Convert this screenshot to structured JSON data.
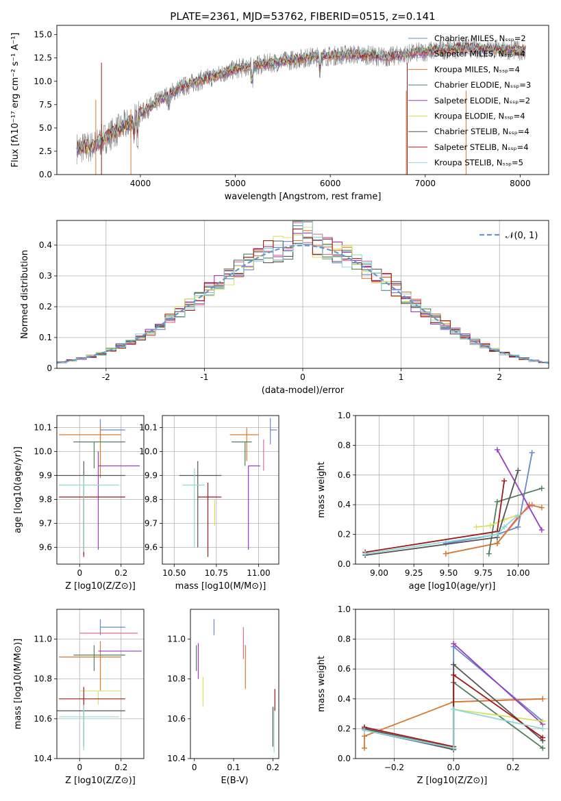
{
  "title": "PLATE=2361, MJD=53762, FIBERID=0515, z=0.141",
  "colors": {
    "CM": "#6688cc",
    "SM": "#e06a9a",
    "KM": "#d87a2e",
    "CE": "#4f7f5a",
    "SE": "#9a3bbd",
    "KE": "#d8e060",
    "CS": "#555555",
    "SS": "#a01818",
    "KS": "#8fd8d8",
    "grid": "#b0b0b0",
    "spectrum": "#808080",
    "normal": "#6495cd"
  },
  "chart_data": [
    {
      "id": "spectrum",
      "type": "line",
      "xlabel": "wavelength [Angstrom, rest frame]",
      "ylabel": "Flux [fλ10⁻¹⁷ erg cm⁻² s⁻¹ A⁻¹]",
      "xlim": [
        3120,
        8300
      ],
      "ylim": [
        0,
        16
      ],
      "xticks": [
        4000,
        5000,
        6000,
        7000,
        8000
      ],
      "yticks": [
        0.0,
        2.5,
        5.0,
        7.5,
        10.0,
        12.5,
        15.0
      ],
      "grid": false,
      "legend_position": "top-right",
      "continuum": {
        "wavelength": [
          3300,
          3500,
          3700,
          3900,
          4000,
          4200,
          4400,
          4600,
          4800,
          5000,
          5200,
          5400,
          5600,
          5800,
          6000,
          6200,
          6400,
          6600,
          6800,
          7000,
          7200,
          7400,
          7600,
          7800,
          8000,
          8060
        ],
        "flux": [
          2.8,
          3.0,
          4.4,
          5.6,
          6.5,
          8.0,
          9.2,
          10.0,
          10.6,
          11.3,
          11.7,
          12.0,
          12.3,
          12.6,
          12.7,
          12.9,
          12.8,
          12.6,
          12.9,
          13.2,
          13.4,
          13.6,
          13.5,
          13.4,
          13.3,
          13.2
        ]
      },
      "series": [
        {
          "name": "Chabrier MILES, N_SSP=2",
          "key": "CM"
        },
        {
          "name": "Salpeter MILES, N_SSP=4",
          "key": "SM"
        },
        {
          "name": "Kroupa MILES, N_SSP=4",
          "key": "KM"
        },
        {
          "name": "Chabrier ELODIE, N_SSP=3",
          "key": "CE"
        },
        {
          "name": "Salpeter ELODIE, N_SSP=2",
          "key": "SE"
        },
        {
          "name": "Kroupa ELODIE, N_SSP=4",
          "key": "KE"
        },
        {
          "name": "Chabrier STELIB, N_SSP=4",
          "key": "CS"
        },
        {
          "name": "Salpeter STELIB, N_SSP=4",
          "key": "SS"
        },
        {
          "name": "Kroupa STELIB, N_SSP=5",
          "key": "KS"
        }
      ]
    },
    {
      "id": "residuals",
      "type": "line",
      "xlabel": "(data-model)/error",
      "ylabel": "Normed distribution",
      "xlim": [
        -2.5,
        2.5
      ],
      "ylim": [
        0,
        0.48
      ],
      "xticks": [
        -2,
        -1,
        0,
        1,
        2
      ],
      "yticks": [
        0.0,
        0.1,
        0.2,
        0.3,
        0.4
      ],
      "grid": true,
      "legend_label": "𝒩(0, 1)",
      "legend_position": "top-right",
      "normal": {
        "mean": 0,
        "sigma": 1
      },
      "bin_width": 0.1
    },
    {
      "id": "age-vs-Z",
      "type": "scatter",
      "xlabel": "Z [log10(Z/Z⊙)]",
      "ylabel": "age  [log10(age/yr)]",
      "xlim": [
        -0.11,
        0.31
      ],
      "ylim": [
        9.53,
        10.15
      ],
      "xticks": [
        0.0,
        0.2
      ],
      "yticks": [
        9.6,
        9.7,
        9.8,
        9.9,
        10.0,
        10.1
      ],
      "grid": true,
      "points": [
        {
          "key": "CM",
          "x": 0.1,
          "xerr": [
            0.0,
            0.12
          ],
          "y": 10.09,
          "yerr": [
            0.04,
            0.045
          ]
        },
        {
          "key": "SM",
          "x": 0.1,
          "xerr": [
            0.0,
            0.0
          ],
          "y": 10.09,
          "yerr": [
            0.0,
            0.0
          ]
        },
        {
          "key": "KM",
          "x": 0.1,
          "xerr": [
            0.2,
            0.1
          ],
          "y": 10.07,
          "yerr": [
            0.18,
            0.04
          ]
        },
        {
          "key": "CE",
          "x": 0.07,
          "xerr": [
            0.1,
            0.15
          ],
          "y": 10.04,
          "yerr": [
            0.11,
            0.0
          ]
        },
        {
          "key": "SE",
          "x": 0.09,
          "xerr": [
            0.0,
            0.2
          ],
          "y": 9.94,
          "yerr": [
            0.35,
            0.06
          ]
        },
        {
          "key": "KE",
          "x": 0.09,
          "xerr": [
            0.0,
            0.0
          ],
          "y": 9.9,
          "yerr": [
            0.0,
            0.0
          ]
        },
        {
          "key": "CS",
          "x": 0.02,
          "xerr": [
            0.13,
            0.2
          ],
          "y": 9.9,
          "yerr": [
            0.33,
            0.06
          ]
        },
        {
          "key": "SS",
          "x": 0.02,
          "xerr": [
            0.12,
            0.2
          ],
          "y": 9.81,
          "yerr": [
            0.25,
            0.03
          ]
        },
        {
          "key": "KS",
          "x": 0.02,
          "xerr": [
            0.12,
            0.17
          ],
          "y": 9.86,
          "yerr": [
            0.28,
            0.04
          ]
        }
      ]
    },
    {
      "id": "age-vs-mass",
      "type": "scatter",
      "xlabel": "mass [log10(M/M⊙)]",
      "xlim": [
        10.43,
        11.12
      ],
      "ylim": [
        9.53,
        10.15
      ],
      "xticks": [
        10.5,
        10.75,
        11.0
      ],
      "xticklabels": [
        "10.50",
        "10.75",
        "11.00"
      ],
      "yticks": [
        9.6,
        9.7,
        9.8,
        9.9,
        10.0,
        10.1
      ],
      "grid": true,
      "points": [
        {
          "key": "CM",
          "x": 11.07,
          "xerr": [
            0.0,
            0.04
          ],
          "y": 10.09,
          "yerr": [
            0.06,
            0.05
          ]
        },
        {
          "key": "SM",
          "x": 11.03,
          "xerr": [
            0.0,
            0.0
          ],
          "y": 10.05,
          "yerr": [
            0.13,
            0.0
          ]
        },
        {
          "key": "KM",
          "x": 10.93,
          "xerr": [
            0.1,
            0.07
          ],
          "y": 10.07,
          "yerr": [
            0.11,
            0.03
          ]
        },
        {
          "key": "CE",
          "x": 10.92,
          "xerr": [
            0.08,
            0.04
          ],
          "y": 10.04,
          "yerr": [
            0.1,
            0.0
          ]
        },
        {
          "key": "SE",
          "x": 10.94,
          "xerr": [
            0.0,
            0.07
          ],
          "y": 9.94,
          "yerr": [
            0.35,
            0.0
          ]
        },
        {
          "key": "KE",
          "x": 10.74,
          "xerr": [
            0.0,
            0.0
          ],
          "y": 9.8,
          "yerr": [
            0.11,
            0.0
          ]
        },
        {
          "key": "CS",
          "x": 10.64,
          "xerr": [
            0.11,
            0.14
          ],
          "y": 9.9,
          "yerr": [
            0.3,
            0.06
          ]
        },
        {
          "key": "SS",
          "x": 10.7,
          "xerr": [
            0.06,
            0.08
          ],
          "y": 9.81,
          "yerr": [
            0.25,
            0.06
          ]
        },
        {
          "key": "KS",
          "x": 10.62,
          "xerr": [
            0.07,
            0.06
          ],
          "y": 9.86,
          "yerr": [
            0.26,
            0.07
          ]
        }
      ]
    },
    {
      "id": "massweight-vs-age",
      "type": "line",
      "xlabel": "age  [log10(age/yr)]",
      "ylabel": "mass weight",
      "xlim": [
        8.83,
        10.22
      ],
      "ylim": [
        0,
        1
      ],
      "xticks": [
        9.0,
        9.25,
        9.5,
        9.75,
        10.0
      ],
      "xticklabels": [
        "9.00",
        "9.25",
        "9.50",
        "9.75",
        "10.00"
      ],
      "yticks": [
        0.0,
        0.2,
        0.4,
        0.6,
        0.8,
        1.0
      ],
      "grid": true,
      "series": [
        {
          "key": "CM",
          "x": [
            9.48,
            9.85,
            10.0,
            10.1
          ],
          "y": [
            0.14,
            0.2,
            0.25,
            0.75
          ]
        },
        {
          "key": "SM",
          "x": [
            9.48,
            9.85,
            10.0,
            10.1
          ],
          "y": [
            0.07,
            0.14,
            0.32,
            0.4
          ]
        },
        {
          "key": "KM",
          "x": [
            9.48,
            9.85,
            10.08,
            10.17
          ],
          "y": [
            0.07,
            0.14,
            0.4,
            0.38
          ]
        },
        {
          "key": "CE",
          "x": [
            9.79,
            9.85,
            10.17
          ],
          "y": [
            0.07,
            0.42,
            0.51
          ]
        },
        {
          "key": "SE",
          "x": [
            9.85,
            10.17
          ],
          "y": [
            0.77,
            0.23
          ]
        },
        {
          "key": "KE",
          "x": [
            9.7,
            9.8,
            9.9,
            10.0
          ],
          "y": [
            0.25,
            0.26,
            0.3,
            0.33
          ]
        },
        {
          "key": "CS",
          "x": [
            8.9,
            9.85,
            10.0
          ],
          "y": [
            0.06,
            0.18,
            0.63
          ]
        },
        {
          "key": "SS",
          "x": [
            8.9,
            9.85,
            9.9
          ],
          "y": [
            0.08,
            0.22,
            0.56
          ]
        },
        {
          "key": "KS",
          "x": [
            8.9,
            9.85,
            9.9,
            10.0
          ],
          "y": [
            0.07,
            0.2,
            0.25,
            0.33
          ]
        }
      ]
    },
    {
      "id": "mass-vs-Z",
      "type": "scatter",
      "xlabel": "Z [log10(Z/Z⊙)]",
      "ylabel": "mass [log10(M/M⊙)]",
      "xlim": [
        -0.11,
        0.31
      ],
      "ylim": [
        10.4,
        11.15
      ],
      "xticks": [
        0.0,
        0.2
      ],
      "yticks": [
        10.4,
        10.6,
        10.8,
        11.0
      ],
      "grid": true,
      "points": [
        {
          "key": "CM",
          "x": 0.1,
          "xerr": [
            0.0,
            0.12
          ],
          "y": 11.06,
          "yerr": [
            0.04,
            0.04
          ]
        },
        {
          "key": "SM",
          "x": 0.1,
          "xerr": [
            0.1,
            0.18
          ],
          "y": 11.03,
          "yerr": [
            0.0,
            0.0
          ]
        },
        {
          "key": "KM",
          "x": 0.1,
          "xerr": [
            0.2,
            0.1
          ],
          "y": 10.91,
          "yerr": [
            0.17,
            0.08
          ]
        },
        {
          "key": "CE",
          "x": 0.07,
          "xerr": [
            0.1,
            0.15
          ],
          "y": 10.92,
          "yerr": [
            0.08,
            0.05
          ]
        },
        {
          "key": "SE",
          "x": 0.09,
          "xerr": [
            0.0,
            0.21
          ],
          "y": 10.94,
          "yerr": [
            0.0,
            0.0
          ]
        },
        {
          "key": "KE",
          "x": 0.09,
          "xerr": [
            0.09,
            0.11
          ],
          "y": 10.74,
          "yerr": [
            0.07,
            0.0
          ]
        },
        {
          "key": "CS",
          "x": 0.02,
          "xerr": [
            0.13,
            0.2
          ],
          "y": 10.64,
          "yerr": [
            0.18,
            0.0
          ]
        },
        {
          "key": "SS",
          "x": 0.02,
          "xerr": [
            0.12,
            0.2
          ],
          "y": 10.7,
          "yerr": [
            0.05,
            0.06
          ]
        },
        {
          "key": "KS",
          "x": 0.02,
          "xerr": [
            0.12,
            0.17
          ],
          "y": 10.61,
          "yerr": [
            0.17,
            0.06
          ]
        }
      ]
    },
    {
      "id": "mass-vs-EBV",
      "type": "scatter",
      "xlabel": "E(B-V)",
      "xlim": [
        -0.01,
        0.215
      ],
      "ylim": [
        10.4,
        11.15
      ],
      "xticks": [
        0.0,
        0.1,
        0.2
      ],
      "yticks": [
        10.4,
        10.6,
        10.8,
        11.0
      ],
      "grid": false,
      "points": [
        {
          "key": "CM",
          "x": 0.05,
          "y": 11.06,
          "yerr": [
            0.04,
            0.04
          ]
        },
        {
          "key": "SM",
          "x": 0.125,
          "y": 11.0,
          "yerr": [
            0.1,
            0.06
          ]
        },
        {
          "key": "KM",
          "x": 0.13,
          "y": 10.9,
          "yerr": [
            0.15,
            0.07
          ]
        },
        {
          "key": "CE",
          "x": 0.005,
          "y": 10.92,
          "yerr": [
            0.08,
            0.05
          ]
        },
        {
          "key": "SE",
          "x": 0.01,
          "y": 10.92,
          "yerr": [
            0.12,
            0.06
          ]
        },
        {
          "key": "KE",
          "x": 0.022,
          "y": 10.74,
          "yerr": [
            0.08,
            0.07
          ]
        },
        {
          "key": "CS",
          "x": 0.2,
          "y": 10.6,
          "yerr": [
            0.14,
            0.06
          ]
        },
        {
          "key": "SS",
          "x": 0.205,
          "y": 10.7,
          "yerr": [
            0.06,
            0.05
          ]
        },
        {
          "key": "KS",
          "x": 0.203,
          "y": 10.61,
          "yerr": [
            0.18,
            0.05
          ]
        }
      ]
    },
    {
      "id": "massweight-vs-Z",
      "type": "line",
      "xlabel": "Z [log10(Z/Z⊙)]",
      "ylabel": "mass weight",
      "xlim": [
        -0.33,
        0.32
      ],
      "ylim": [
        0,
        1
      ],
      "xticks": [
        -0.2,
        0.0,
        0.2
      ],
      "xticklabels": [
        "−0.2",
        "0.0",
        "0.2"
      ],
      "yticks": [
        0.0,
        0.2,
        0.4,
        0.6,
        0.8,
        1.0
      ],
      "grid": true,
      "series": [
        {
          "key": "CM",
          "x": [
            -0.3,
            0.0,
            0.0,
            0.3
          ],
          "y": [
            0.19,
            0.06,
            0.75,
            0.25
          ]
        },
        {
          "key": "SM",
          "x": [
            -0.3,
            0.0,
            0.0,
            0.3
          ],
          "y": [
            0.21,
            0.07,
            0.38,
            0.4
          ]
        },
        {
          "key": "KM",
          "x": [
            -0.3,
            -0.3,
            0.0,
            0.3
          ],
          "y": [
            0.07,
            0.15,
            0.38,
            0.4
          ]
        },
        {
          "key": "CE",
          "x": [
            -0.3,
            0.0,
            0.0,
            0.3
          ],
          "y": [
            0.2,
            0.07,
            0.51,
            0.07
          ]
        },
        {
          "key": "SE",
          "x": [
            0.0,
            0.3
          ],
          "y": [
            0.77,
            0.23
          ]
        },
        {
          "key": "KE",
          "x": [
            0.0,
            0.3
          ],
          "y": [
            0.33,
            0.25
          ]
        },
        {
          "key": "CS",
          "x": [
            -0.3,
            0.0,
            0.0,
            0.3
          ],
          "y": [
            0.2,
            0.06,
            0.63,
            0.12
          ]
        },
        {
          "key": "SS",
          "x": [
            -0.3,
            0.0,
            0.0,
            0.3
          ],
          "y": [
            0.21,
            0.08,
            0.56,
            0.14
          ]
        },
        {
          "key": "KS",
          "x": [
            -0.3,
            0.0,
            0.0,
            0.3
          ],
          "y": [
            0.19,
            0.07,
            0.33,
            0.2
          ]
        }
      ]
    }
  ]
}
